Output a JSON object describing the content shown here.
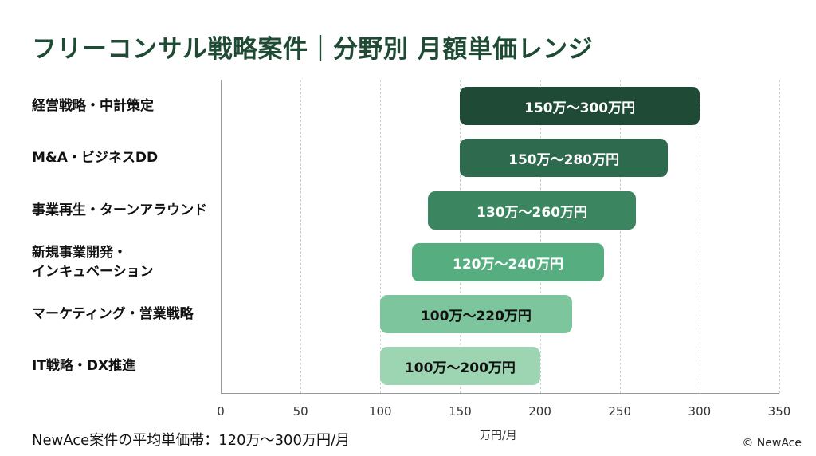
{
  "title": "フリーコンサル戦略案件｜分野別 月額単価レンジ",
  "chart_data": {
    "type": "bar",
    "orientation": "horizontal-range",
    "title": "フリーコンサル戦略案件｜分野別 月額単価レンジ",
    "xlabel": "万円/月",
    "ylabel": "",
    "xlim": [
      0,
      350
    ],
    "xticks": [
      0,
      50,
      100,
      150,
      200,
      250,
      300,
      350
    ],
    "grid": "vertical dashed",
    "categories": [
      "経営戦略・中計策定",
      "M&A・ビジネスDD",
      "事業再生・ターンアラウンド",
      "新規事業開発・インキュベーション",
      "マーケティング・営業戦略",
      "IT戦略・DX推進"
    ],
    "series": [
      {
        "name": "min",
        "values": [
          150,
          150,
          130,
          120,
          100,
          100
        ]
      },
      {
        "name": "max",
        "values": [
          300,
          280,
          260,
          240,
          220,
          200
        ]
      }
    ],
    "data_labels": [
      "150万〜300万円",
      "150万〜280万円",
      "130万〜260万円",
      "120万〜240万円",
      "100万〜220万円",
      "100万〜200万円"
    ]
  },
  "rows": [
    {
      "label_lines": [
        "経営戦略・中計策定"
      ],
      "min": 150,
      "max": 300,
      "text": "150万〜300万円",
      "color": "#1e4a36",
      "text_color": "#ffffff"
    },
    {
      "label_lines": [
        "M&A・ビジネスDD"
      ],
      "min": 150,
      "max": 280,
      "text": "150万〜280万円",
      "color": "#2e6b4e",
      "text_color": "#ffffff"
    },
    {
      "label_lines": [
        "事業再生・ターンアラウンド"
      ],
      "min": 130,
      "max": 260,
      "text": "130万〜260万円",
      "color": "#3b8560",
      "text_color": "#ffffff"
    },
    {
      "label_lines": [
        "新規事業開発・",
        "インキュベーション"
      ],
      "min": 120,
      "max": 240,
      "text": "120万〜240万円",
      "color": "#55ad80",
      "text_color": "#ffffff"
    },
    {
      "label_lines": [
        "マーケティング・営業戦略"
      ],
      "min": 100,
      "max": 220,
      "text": "100万〜220万円",
      "color": "#7dc59d",
      "text_color": "#111111"
    },
    {
      "label_lines": [
        "IT戦略・DX推進"
      ],
      "min": 100,
      "max": 200,
      "text": "100万〜200万円",
      "color": "#9dd5b3",
      "text_color": "#111111"
    }
  ],
  "axis": {
    "ticks": [
      "0",
      "50",
      "100",
      "150",
      "200",
      "250",
      "300",
      "350"
    ],
    "unit_label": "万円/月"
  },
  "footer": {
    "note": "NewAce案件の平均単価帯：120万〜300万円/月",
    "copyright": "© NewAce"
  }
}
